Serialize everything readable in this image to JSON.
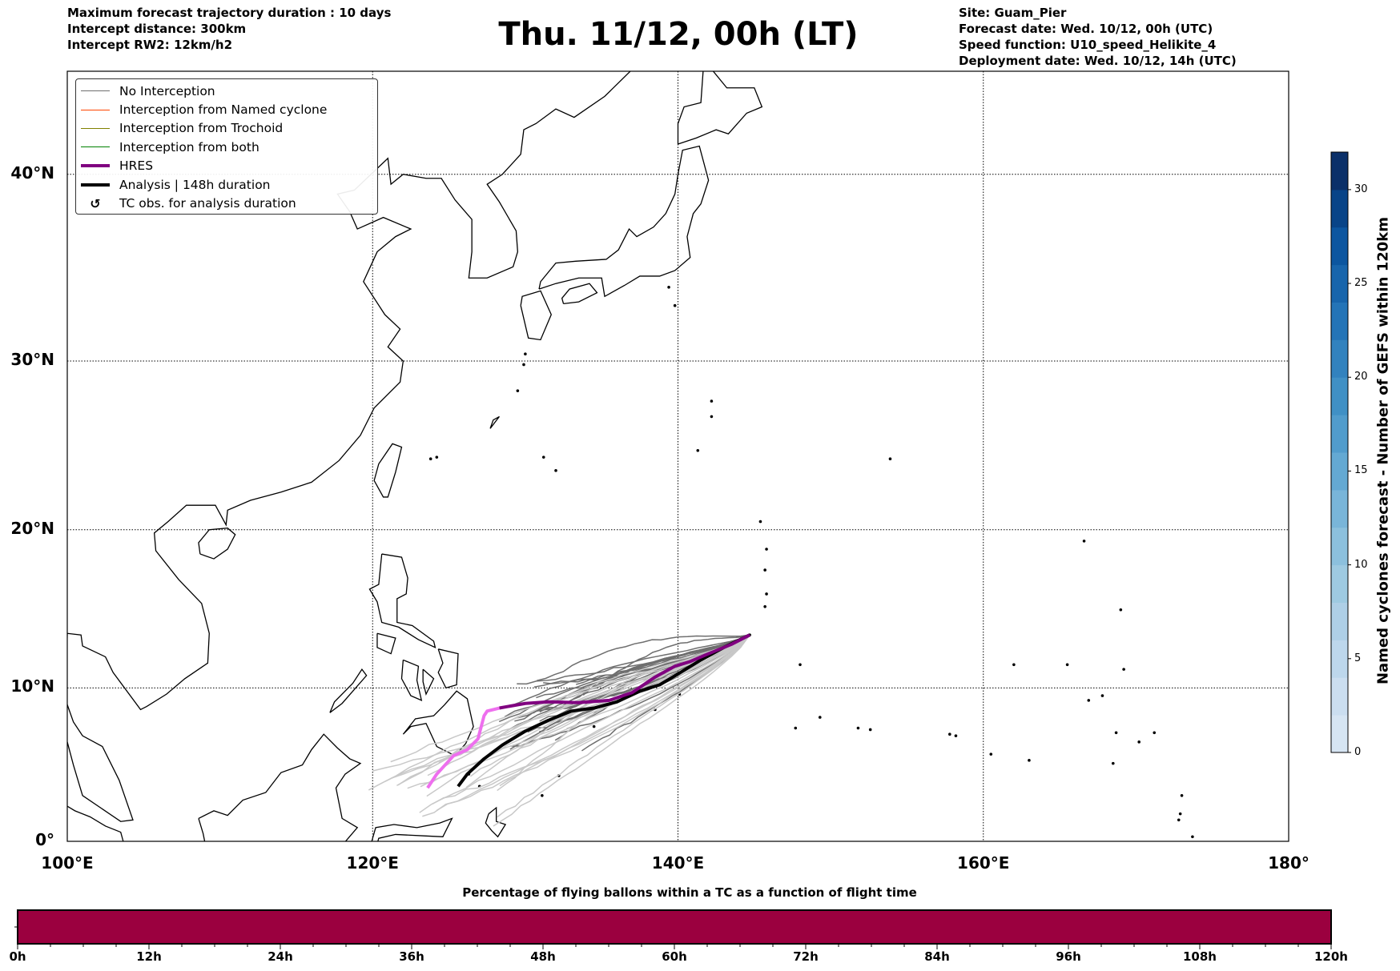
{
  "header": {
    "left": [
      "Maximum forecast trajectory duration : 10 days",
      "Intercept distance: 300km",
      "Intercept RW2: 12km/h2"
    ],
    "title": "Thu. 11/12, 00h (LT)",
    "right": [
      "Site: Guam_Pier",
      "Forecast date: Wed. 10/12, 00h (UTC)",
      "Speed function: U10_speed_Helikite_4",
      "Deployment date: Wed. 10/12, 14h (UTC)"
    ]
  },
  "legend": [
    {
      "label": "No Interception",
      "color": "#6e6e6e",
      "kind": "thin"
    },
    {
      "label": "Interception from Named cyclone",
      "color": "#ff4500",
      "kind": "thin"
    },
    {
      "label": "Interception from Trochoid",
      "color": "#808000",
      "kind": "thin"
    },
    {
      "label": "Interception from both",
      "color": "#008000",
      "kind": "thin"
    },
    {
      "label": "HRES",
      "color": "#800080",
      "kind": "thick"
    },
    {
      "label": "Analysis | 148h duration",
      "color": "#000000",
      "kind": "thick"
    },
    {
      "label": "TC obs. for analysis duration",
      "color": "#000000",
      "kind": "marker",
      "icon": "↺"
    }
  ],
  "chart_data": [
    {
      "type": "line",
      "title": "Thu. 11/12, 00h (LT)",
      "projection": "mercator",
      "xlim": [
        100,
        180
      ],
      "ylim": [
        0,
        45.7
      ],
      "xticks": [
        "100°E",
        "120°E",
        "140°E",
        "160°E",
        "180°"
      ],
      "xtick_values": [
        100,
        120,
        140,
        160,
        180
      ],
      "yticks": [
        "0°",
        "10°N",
        "20°N",
        "30°N",
        "40°N"
      ],
      "ytick_values": [
        0,
        10,
        20,
        30,
        40
      ],
      "grid": true,
      "legend_position": "top-left",
      "launch_site": {
        "lon": 144.7,
        "lat": 13.4
      },
      "series": [
        {
          "name": "HRES",
          "color_start": "#800080",
          "color_end": "#ee6fee",
          "lon": [
            144.7,
            143.5,
            142,
            140.8,
            139.8,
            138.5,
            137,
            135.5,
            133.5,
            131.5,
            130,
            128.3,
            127.5,
            127.3,
            126.9,
            126.2,
            125.3,
            124.2,
            123.6
          ],
          "lat": [
            13.4,
            12.8,
            12.2,
            11.7,
            11.4,
            10.7,
            9.7,
            9.2,
            9.05,
            9.1,
            9.0,
            8.7,
            8.5,
            8.2,
            6.7,
            6.0,
            5.6,
            4.4,
            3.5
          ]
        },
        {
          "name": "Analysis | 148h duration",
          "color": "#000000",
          "lon": [
            144.7,
            143,
            141.5,
            140,
            138.8,
            137.5,
            136,
            134.5,
            133,
            131.5,
            130,
            128.5,
            127.3,
            126.2,
            125.6
          ],
          "lat": [
            13.4,
            12.6,
            11.8,
            10.9,
            10.2,
            9.8,
            9.1,
            8.7,
            8.5,
            7.9,
            7.2,
            6.3,
            5.4,
            4.4,
            3.6
          ]
        }
      ]
    },
    {
      "type": "heatmap",
      "title": "Named cyclones forecast - Number of GEFS within 120km",
      "ylim": [
        0,
        32
      ],
      "ticks": [
        "0",
        "5",
        "10",
        "15",
        "20",
        "25",
        "30"
      ],
      "tick_values": [
        0,
        5,
        10,
        15,
        20,
        25,
        30
      ],
      "bins": 16,
      "colors": [
        "#d6e5f3",
        "#cbdef0",
        "#bdd7ec",
        "#aecfe6",
        "#9ecae1",
        "#8cc0dd",
        "#79b5d9",
        "#64a9d3",
        "#519ccc",
        "#4090c5",
        "#3282be",
        "#2474b7",
        "#1865ac",
        "#0c56a0",
        "#084488",
        "#0b3069"
      ]
    },
    {
      "type": "bar",
      "title": "Percentage of flying ballons within a TC as a function of flight time",
      "xlim": [
        0,
        120
      ],
      "xticks": [
        "0h",
        "12h",
        "24h",
        "36h",
        "48h",
        "60h",
        "72h",
        "84h",
        "96h",
        "108h",
        "120h"
      ],
      "xtick_values": [
        0,
        12,
        24,
        36,
        48,
        60,
        72,
        84,
        96,
        108,
        120
      ],
      "minor_tick_step": 3,
      "fill_color": "#9b003f",
      "values_percent_constant": 0
    }
  ]
}
